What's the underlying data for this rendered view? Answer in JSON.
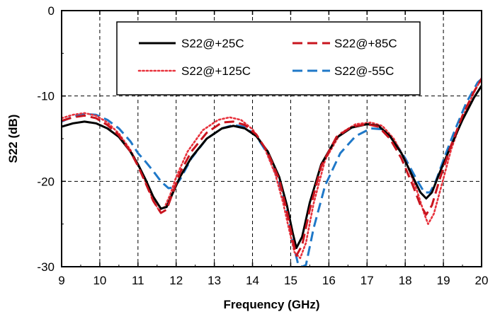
{
  "chart_data": {
    "type": "line",
    "title": "",
    "xlabel": "Frequency (GHz)",
    "ylabel": "S22 (dB)",
    "xlim": [
      9,
      20
    ],
    "ylim": [
      -30,
      0
    ],
    "xticks": [
      "9",
      "10",
      "11",
      "12",
      "13",
      "14",
      "15",
      "16",
      "17",
      "18",
      "19",
      "20"
    ],
    "yticks": [
      "0",
      "-10",
      "-20",
      "-30"
    ],
    "grid": "dashed",
    "legend_position": "top",
    "series": [
      {
        "name": "S22@+25C",
        "color": "#000000",
        "style": "solid",
        "x": [
          9.0,
          9.3,
          9.6,
          9.9,
          10.2,
          10.5,
          10.8,
          11.0,
          11.2,
          11.4,
          11.6,
          11.75,
          11.9,
          12.1,
          12.4,
          12.8,
          13.2,
          13.5,
          13.8,
          14.1,
          14.4,
          14.7,
          14.9,
          15.05,
          15.15,
          15.3,
          15.5,
          15.8,
          16.2,
          16.6,
          17.0,
          17.3,
          17.6,
          17.9,
          18.2,
          18.4,
          18.55,
          18.7,
          18.9,
          19.2,
          19.5,
          19.8,
          20.0
        ],
        "values": [
          -13.6,
          -13.2,
          -13.0,
          -13.2,
          -13.8,
          -14.8,
          -16.5,
          -18.0,
          -19.8,
          -21.8,
          -23.2,
          -23.0,
          -21.5,
          -19.5,
          -17.2,
          -15.0,
          -13.8,
          -13.5,
          -13.8,
          -14.7,
          -16.5,
          -19.5,
          -22.8,
          -26.0,
          -27.8,
          -26.5,
          -22.5,
          -18.0,
          -14.9,
          -13.7,
          -13.3,
          -13.5,
          -14.7,
          -16.7,
          -19.5,
          -21.3,
          -22.0,
          -21.3,
          -19.0,
          -15.8,
          -12.8,
          -10.2,
          -8.8
        ]
      },
      {
        "name": "S22@+85C",
        "color": "#c8141e",
        "style": "dashed",
        "x": [
          9.0,
          9.3,
          9.6,
          9.9,
          10.2,
          10.5,
          10.8,
          11.0,
          11.2,
          11.4,
          11.6,
          11.75,
          11.9,
          12.1,
          12.4,
          12.8,
          13.2,
          13.5,
          13.8,
          14.1,
          14.4,
          14.7,
          14.9,
          15.05,
          15.15,
          15.3,
          15.5,
          15.8,
          16.2,
          16.6,
          17.0,
          17.3,
          17.6,
          17.9,
          18.2,
          18.4,
          18.55,
          18.7,
          18.9,
          19.2,
          19.5,
          19.8,
          20.0
        ],
        "values": [
          -12.9,
          -12.5,
          -12.3,
          -12.6,
          -13.4,
          -14.6,
          -16.5,
          -18.2,
          -20.2,
          -22.3,
          -23.7,
          -23.3,
          -21.5,
          -19.0,
          -16.5,
          -14.3,
          -13.1,
          -13.0,
          -13.4,
          -14.5,
          -16.6,
          -19.8,
          -23.5,
          -26.8,
          -28.7,
          -27.5,
          -23.3,
          -18.2,
          -14.8,
          -13.6,
          -13.3,
          -13.6,
          -15.0,
          -17.3,
          -20.5,
          -22.8,
          -23.9,
          -22.8,
          -19.8,
          -15.8,
          -12.3,
          -9.5,
          -8.0
        ]
      },
      {
        "name": "S22@+125C",
        "color": "#e8323c",
        "style": "dotted",
        "x": [
          9.0,
          9.3,
          9.6,
          9.9,
          10.2,
          10.5,
          10.8,
          11.0,
          11.2,
          11.4,
          11.55,
          11.7,
          11.85,
          12.0,
          12.3,
          12.7,
          13.1,
          13.4,
          13.7,
          14.0,
          14.3,
          14.6,
          14.8,
          14.95,
          15.1,
          15.25,
          15.4,
          15.6,
          15.9,
          16.3,
          16.7,
          17.1,
          17.4,
          17.7,
          18.0,
          18.3,
          18.5,
          18.6,
          18.75,
          18.95,
          19.2,
          19.5,
          19.8,
          20.0
        ],
        "values": [
          -12.6,
          -12.2,
          -12.0,
          -12.3,
          -13.1,
          -14.4,
          -16.3,
          -18.0,
          -20.1,
          -22.2,
          -23.4,
          -23.0,
          -21.5,
          -19.5,
          -16.5,
          -14.0,
          -12.8,
          -12.5,
          -12.8,
          -13.9,
          -15.9,
          -19.2,
          -22.5,
          -25.5,
          -28.3,
          -29.0,
          -27.2,
          -22.6,
          -17.5,
          -14.4,
          -13.3,
          -13.1,
          -13.5,
          -15.0,
          -17.5,
          -21.0,
          -23.8,
          -25.0,
          -23.8,
          -20.5,
          -16.3,
          -12.5,
          -9.6,
          -7.9
        ]
      },
      {
        "name": "S22@-55C",
        "color": "#1f78c8",
        "style": "dashed",
        "x": [
          9.0,
          9.3,
          9.6,
          9.9,
          10.2,
          10.5,
          10.8,
          11.0,
          11.2,
          11.4,
          11.6,
          11.8,
          11.95,
          12.1,
          12.4,
          12.8,
          13.2,
          13.5,
          13.8,
          14.1,
          14.4,
          14.7,
          14.9,
          15.05,
          15.2,
          15.3,
          15.4,
          15.6,
          15.9,
          16.3,
          16.7,
          17.1,
          17.4,
          17.7,
          18.0,
          18.3,
          18.5,
          18.65,
          18.8,
          19.0,
          19.3,
          19.6,
          19.9,
          20.0
        ],
        "values": [
          -13.0,
          -12.4,
          -12.1,
          -12.2,
          -12.8,
          -13.8,
          -15.3,
          -16.7,
          -17.7,
          -18.8,
          -20.0,
          -20.8,
          -20.7,
          -19.8,
          -17.3,
          -15.0,
          -13.8,
          -13.4,
          -13.6,
          -14.7,
          -16.8,
          -20.2,
          -23.5,
          -27.0,
          -29.8,
          -30.0,
          -29.8,
          -25.5,
          -20.5,
          -16.7,
          -14.7,
          -13.8,
          -13.9,
          -15.2,
          -17.3,
          -19.8,
          -21.3,
          -21.3,
          -20.0,
          -17.5,
          -14.0,
          -10.8,
          -8.4,
          -8.0
        ]
      }
    ]
  }
}
